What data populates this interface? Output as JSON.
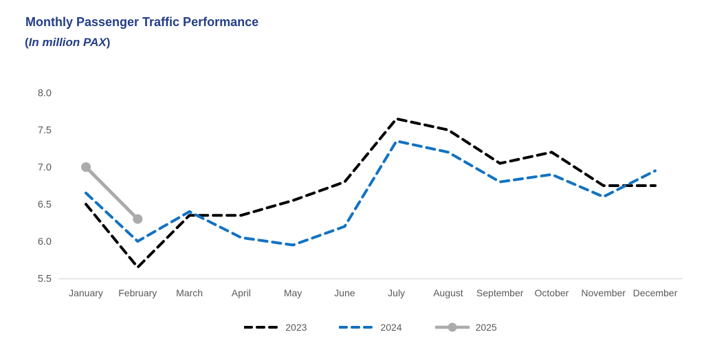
{
  "header": {
    "title": "Monthly Passenger Traffic Performance",
    "subtitle_open": "(",
    "subtitle_text": "In million PAX",
    "subtitle_close": ")"
  },
  "colors": {
    "title_text": "#233E87",
    "axis_text": "#595959",
    "axis_line": "#D9D9D9",
    "legend_text": "#595959"
  },
  "chart_data": {
    "type": "line",
    "title": "Monthly Passenger Traffic Performance",
    "subtitle": "(In million PAX)",
    "categories": [
      "January",
      "February",
      "March",
      "April",
      "May",
      "June",
      "July",
      "August",
      "September",
      "October",
      "November",
      "December"
    ],
    "series": [
      {
        "name": "2023",
        "color": "#000000",
        "style": "dashed",
        "values": [
          6.5,
          5.65,
          6.35,
          6.35,
          6.55,
          6.8,
          7.65,
          7.5,
          7.05,
          7.2,
          6.75,
          6.75
        ]
      },
      {
        "name": "2024",
        "color": "#1272C2",
        "style": "dashed",
        "values": [
          6.65,
          6.0,
          6.4,
          6.05,
          5.95,
          6.2,
          7.35,
          7.2,
          6.8,
          6.9,
          6.6,
          6.95
        ]
      },
      {
        "name": "2025",
        "color": "#ABABAB",
        "style": "solid-marker",
        "values": [
          7.0,
          6.3
        ]
      }
    ],
    "ylim": [
      5.5,
      8.0
    ],
    "yticks": [
      5.5,
      6.0,
      6.5,
      7.0,
      7.5,
      8.0
    ],
    "grid": false,
    "legend_position": "bottom"
  },
  "legend": {
    "items": [
      {
        "label": "2023"
      },
      {
        "label": "2024"
      },
      {
        "label": "2025"
      }
    ]
  }
}
